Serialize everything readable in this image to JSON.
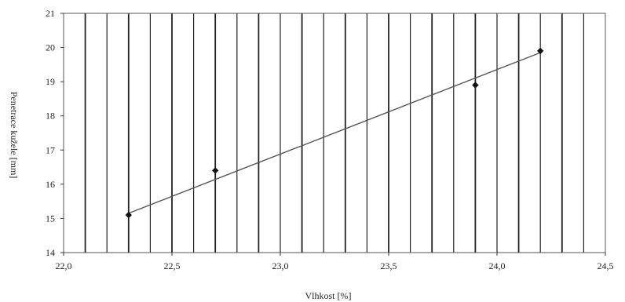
{
  "chart_data": {
    "type": "scatter",
    "title": "",
    "xlabel": "Vlhkost [%]",
    "ylabel": "Penetrace kužele [mm]",
    "xlim": [
      22.0,
      24.5
    ],
    "ylim": [
      14,
      21
    ],
    "x_ticks": [
      "22,0",
      "22,5",
      "23,0",
      "23,5",
      "24,0",
      "24,5"
    ],
    "x_tick_values": [
      22.0,
      22.5,
      23.0,
      23.5,
      24.0,
      24.5
    ],
    "y_ticks": [
      "14",
      "15",
      "16",
      "17",
      "18",
      "19",
      "20",
      "21"
    ],
    "y_tick_values": [
      14,
      15,
      16,
      17,
      18,
      19,
      20,
      21
    ],
    "vertical_grid_step": 0.1,
    "grid": "vertical",
    "legend": "none",
    "series": [
      {
        "x": [
          22.3,
          22.7,
          23.9,
          24.2
        ],
        "y": [
          15.1,
          16.4,
          18.9,
          19.9
        ],
        "marker": "diamond"
      }
    ],
    "trendline": {
      "x": [
        22.3,
        24.2
      ],
      "y": [
        15.15,
        19.85
      ]
    },
    "colors": {
      "grid": "#222222",
      "trend": "#555555",
      "marker": "#111111"
    }
  }
}
